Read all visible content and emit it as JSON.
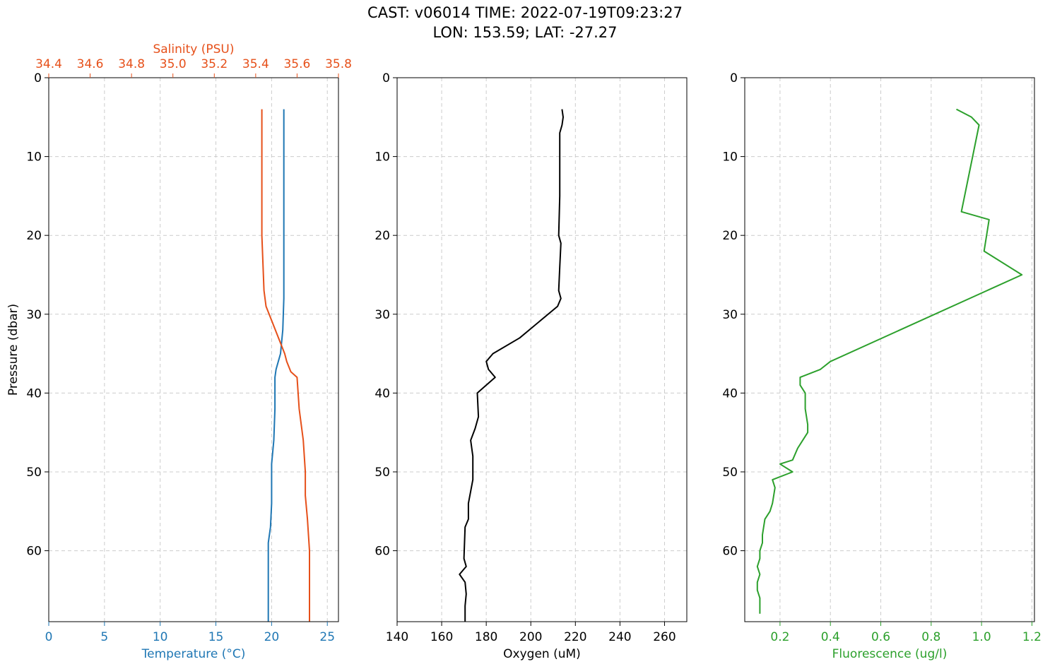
{
  "figure": {
    "title_line1": "CAST: v06014  TIME: 2022-07-19T09:23:27",
    "title_line2": "LON: 153.59; LAT: -27.27"
  },
  "colors": {
    "temperature": "#1f77b4",
    "salinity": "#e6501a",
    "oxygen": "#000000",
    "fluorescence": "#2ca02c",
    "grid": "#cccccc"
  },
  "chart_data": [
    {
      "type": "line",
      "ylabel": "Pressure (dbar)",
      "ylim": [
        69,
        0
      ],
      "y_ticks": [
        0,
        10,
        20,
        30,
        40,
        50,
        60
      ],
      "grid": true,
      "xlabel": "Temperature (°C)",
      "xlim": [
        0,
        26
      ],
      "x_ticks": [
        0,
        5,
        10,
        15,
        20,
        25
      ],
      "xlabel_top": "Salinity (PSU)",
      "xlim_top": [
        34.4,
        35.8
      ],
      "x_ticks_top": [
        "34.4",
        "34.6",
        "34.8",
        "35.0",
        "35.2",
        "35.4",
        "35.6",
        "35.8"
      ],
      "series": [
        {
          "name": "Temperature (°C)",
          "axis": "bottom",
          "points": [
            [
              21.1,
              4
            ],
            [
              21.1,
              10
            ],
            [
              21.1,
              20
            ],
            [
              21.1,
              28
            ],
            [
              21.0,
              32
            ],
            [
              20.8,
              35
            ],
            [
              20.4,
              37
            ],
            [
              20.3,
              38
            ],
            [
              20.3,
              42
            ],
            [
              20.2,
              46
            ],
            [
              20.0,
              49
            ],
            [
              20.0,
              54
            ],
            [
              19.9,
              57
            ],
            [
              19.7,
              59
            ],
            [
              19.7,
              63
            ],
            [
              19.7,
              69
            ]
          ]
        },
        {
          "name": "Salinity (PSU)",
          "axis": "top",
          "points": [
            [
              35.43,
              4
            ],
            [
              35.43,
              10
            ],
            [
              35.43,
              20
            ],
            [
              35.44,
              27
            ],
            [
              35.45,
              29
            ],
            [
              35.48,
              31
            ],
            [
              35.51,
              33
            ],
            [
              35.54,
              35
            ],
            [
              35.55,
              36
            ],
            [
              35.57,
              37.3
            ],
            [
              35.6,
              38
            ],
            [
              35.61,
              42
            ],
            [
              35.63,
              46
            ],
            [
              35.64,
              50
            ],
            [
              35.64,
              53
            ],
            [
              35.65,
              56
            ],
            [
              35.66,
              60
            ],
            [
              35.66,
              69
            ]
          ]
        }
      ]
    },
    {
      "type": "line",
      "ylim": [
        69,
        0
      ],
      "y_ticks": [
        0,
        10,
        20,
        30,
        40,
        50,
        60
      ],
      "grid": true,
      "xlabel": "Oxygen (uM)",
      "xlim": [
        140,
        270
      ],
      "x_ticks": [
        140,
        160,
        180,
        200,
        220,
        240,
        260
      ],
      "series": [
        {
          "name": "Oxygen (uM)",
          "points": [
            [
              214,
              4
            ],
            [
              214.5,
              5
            ],
            [
              214,
              6
            ],
            [
              213,
              7
            ],
            [
              213,
              10
            ],
            [
              213,
              15
            ],
            [
              212.5,
              20
            ],
            [
              213.5,
              21
            ],
            [
              213,
              24
            ],
            [
              212.5,
              27
            ],
            [
              213.5,
              28
            ],
            [
              212,
              29
            ],
            [
              195,
              33
            ],
            [
              183,
              35
            ],
            [
              180,
              36
            ],
            [
              181,
              37
            ],
            [
              184,
              38
            ],
            [
              178,
              39.5
            ],
            [
              176,
              40
            ],
            [
              176.5,
              43
            ],
            [
              175,
              44.5
            ],
            [
              173,
              46
            ],
            [
              174,
              48
            ],
            [
              174,
              51
            ],
            [
              172,
              54
            ],
            [
              172,
              56
            ],
            [
              170.5,
              57
            ],
            [
              170,
              61
            ],
            [
              171,
              62
            ],
            [
              168,
              63
            ],
            [
              170.5,
              64
            ],
            [
              171,
              65.5
            ],
            [
              170.5,
              67
            ],
            [
              170.5,
              69
            ]
          ]
        }
      ]
    },
    {
      "type": "line",
      "ylim": [
        69,
        0
      ],
      "y_ticks": [
        0,
        10,
        20,
        30,
        40,
        50,
        60
      ],
      "grid": true,
      "xlabel": "Fluorescence (ug/l)",
      "xlim": [
        0.06,
        1.21
      ],
      "x_ticks": [
        "0.2",
        "0.4",
        "0.6",
        "0.8",
        "1.0",
        "1.2"
      ],
      "series": [
        {
          "name": "Fluorescence (ug/l)",
          "points": [
            [
              0.9,
              4
            ],
            [
              0.96,
              5
            ],
            [
              0.99,
              6
            ],
            [
              0.92,
              17
            ],
            [
              1.03,
              18
            ],
            [
              1.01,
              22
            ],
            [
              1.16,
              25
            ],
            [
              0.4,
              36
            ],
            [
              0.36,
              37
            ],
            [
              0.28,
              38
            ],
            [
              0.28,
              39
            ],
            [
              0.3,
              40
            ],
            [
              0.3,
              42
            ],
            [
              0.31,
              44
            ],
            [
              0.31,
              45
            ],
            [
              0.29,
              46
            ],
            [
              0.27,
              47
            ],
            [
              0.25,
              48.5
            ],
            [
              0.2,
              49
            ],
            [
              0.25,
              50
            ],
            [
              0.17,
              51
            ],
            [
              0.18,
              52
            ],
            [
              0.17,
              54
            ],
            [
              0.16,
              55
            ],
            [
              0.14,
              56
            ],
            [
              0.13,
              58
            ],
            [
              0.13,
              59
            ],
            [
              0.12,
              60
            ],
            [
              0.12,
              61
            ],
            [
              0.11,
              62
            ],
            [
              0.12,
              63
            ],
            [
              0.11,
              64
            ],
            [
              0.11,
              65
            ],
            [
              0.12,
              66
            ],
            [
              0.12,
              67
            ],
            [
              0.12,
              68
            ]
          ]
        }
      ]
    }
  ]
}
